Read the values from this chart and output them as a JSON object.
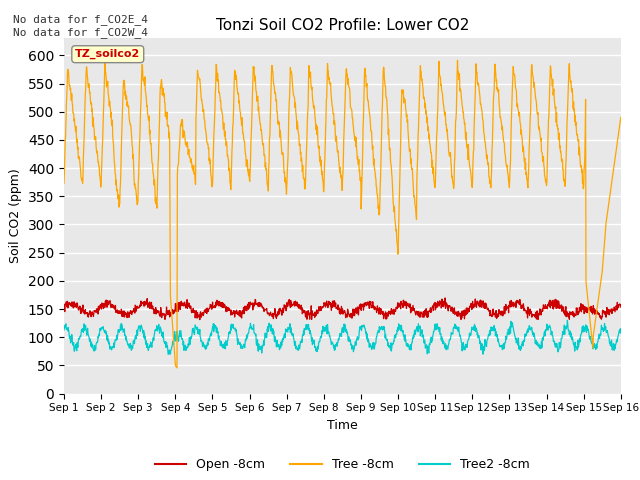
{
  "title": "Tonzi Soil CO2 Profile: Lower CO2",
  "ylabel": "Soil CO2 (ppm)",
  "xlabel": "Time",
  "ylim": [
    0,
    630
  ],
  "yticks": [
    0,
    50,
    100,
    150,
    200,
    250,
    300,
    350,
    400,
    450,
    500,
    550,
    600
  ],
  "bg_color": "#e8e8e8",
  "fig_color": "#ffffff",
  "note_text": "No data for f_CO2E_4\nNo data for f_CO2W_4",
  "label_text": "TZ_soilco2",
  "legend_labels": [
    "Open -8cm",
    "Tree -8cm",
    "Tree2 -8cm"
  ],
  "legend_colors": [
    "#cc0000",
    "#ffa500",
    "#00cccc"
  ],
  "open_color": "#cc0000",
  "tree_color": "#ffa500",
  "tree2_color": "#00cccc",
  "n_days": 15,
  "pts_per_day": 96
}
